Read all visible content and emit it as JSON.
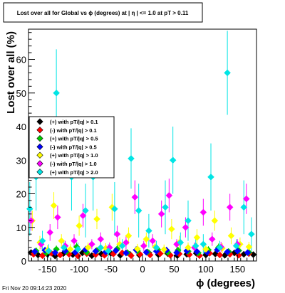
{
  "chart_data": {
    "type": "scatter",
    "title": "Lost over all for Global vs ϕ (degrees) at | η | <= 1.0 at pT > 0.11",
    "xlabel": "ϕ (degrees)",
    "ylabel": "Lost over all (%)",
    "xlim": [
      -180,
      180
    ],
    "ylim": [
      0,
      69
    ],
    "x_ticks": [
      -150,
      -100,
      -50,
      0,
      50,
      100,
      150
    ],
    "y_ticks": [
      0,
      10,
      20,
      30,
      40,
      50,
      60
    ],
    "legend_position": "left-middle",
    "grid": false,
    "footer": "Fri Nov 20 09:14:23 2020",
    "series": [
      {
        "name": "(+) with pT/|q| > 0.1",
        "color": "#000000",
        "x": [
          -176,
          -165,
          -150,
          -138,
          -125,
          -110,
          -95,
          -80,
          -65,
          -50,
          -35,
          -20,
          -5,
          10,
          25,
          40,
          55,
          70,
          85,
          100,
          115,
          130,
          145,
          160,
          175
        ],
        "y": [
          2.5,
          1.8,
          2.0,
          1.5,
          2.2,
          1.9,
          2.4,
          1.6,
          2.1,
          2.3,
          1.7,
          2.0,
          1.8,
          2.4,
          1.9,
          2.2,
          1.6,
          2.0,
          2.3,
          1.8,
          2.1,
          1.7,
          2.4,
          2.0,
          1.9
        ],
        "err": [
          0.8,
          0.7,
          0.8,
          0.6,
          0.8,
          0.7,
          0.8,
          0.6,
          0.8,
          0.8,
          0.7,
          0.8,
          0.7,
          0.8,
          0.7,
          0.8,
          0.6,
          0.8,
          0.8,
          0.7,
          0.8,
          0.7,
          0.8,
          0.8,
          0.7
        ]
      },
      {
        "name": "(-) with pT/|q| > 0.1",
        "color": "#ff0000",
        "x": [
          -172,
          -158,
          -144,
          -130,
          -116,
          -102,
          -88,
          -74,
          -60,
          -46,
          -32,
          -18,
          -4,
          12,
          28,
          44,
          58,
          74,
          90,
          106,
          122,
          138,
          152,
          168
        ],
        "y": [
          2.0,
          1.6,
          2.3,
          1.8,
          2.0,
          1.5,
          2.2,
          1.9,
          1.7,
          2.1,
          2.4,
          1.6,
          2.0,
          1.8,
          2.2,
          1.7,
          2.1,
          1.9,
          1.6,
          2.3,
          1.8,
          2.0,
          1.7,
          2.2
        ],
        "err": [
          0.7,
          0.6,
          0.8,
          0.7,
          0.7,
          0.6,
          0.8,
          0.7,
          0.6,
          0.7,
          0.8,
          0.6,
          0.7,
          0.7,
          0.8,
          0.6,
          0.7,
          0.7,
          0.6,
          0.8,
          0.7,
          0.7,
          0.6,
          0.8
        ]
      },
      {
        "name": "(+) with pT/|q| > 0.5",
        "color": "#00cc00",
        "x": [
          -168,
          -152,
          -136,
          -120,
          -104,
          -88,
          -72,
          -56,
          -40,
          -24,
          -8,
          8,
          24,
          40,
          56,
          72,
          88,
          104,
          120,
          136,
          152,
          168
        ],
        "y": [
          3.0,
          2.4,
          3.5,
          2.8,
          4.2,
          2.6,
          3.1,
          2.9,
          3.6,
          2.5,
          3.0,
          2.7,
          3.4,
          2.6,
          3.2,
          2.9,
          2.4,
          3.3,
          4.0,
          2.8,
          3.1,
          2.6
        ],
        "err": [
          1.0,
          0.9,
          1.1,
          1.0,
          1.3,
          0.9,
          1.0,
          1.0,
          1.1,
          0.9,
          1.0,
          0.9,
          1.1,
          0.9,
          1.0,
          1.0,
          0.9,
          1.1,
          1.2,
          1.0,
          1.0,
          0.9
        ]
      },
      {
        "name": "(-) with pT/|q| > 0.5",
        "color": "#0000ff",
        "x": [
          -170,
          -154,
          -138,
          -122,
          -106,
          -90,
          -74,
          -58,
          -42,
          -26,
          -10,
          6,
          22,
          38,
          54,
          70,
          86,
          102,
          118,
          134,
          150,
          166
        ],
        "y": [
          2.8,
          3.2,
          2.5,
          3.0,
          2.6,
          3.4,
          2.9,
          2.7,
          3.1,
          2.4,
          3.3,
          2.6,
          2.9,
          3.2,
          2.5,
          3.0,
          2.8,
          2.6,
          3.3,
          2.7,
          3.0,
          2.5
        ],
        "err": [
          0.9,
          1.0,
          0.9,
          1.0,
          0.9,
          1.1,
          1.0,
          0.9,
          1.0,
          0.9,
          1.1,
          0.9,
          1.0,
          1.0,
          0.9,
          1.0,
          1.0,
          0.9,
          1.1,
          0.9,
          1.0,
          0.9
        ]
      },
      {
        "name": "(+) with pT/|q| > 1.0",
        "color": "#ffff00",
        "x": [
          -174,
          -162,
          -150,
          -140,
          -128,
          -114,
          -100,
          -86,
          -72,
          -58,
          -48,
          -36,
          -22,
          -8,
          6,
          20,
          34,
          46,
          58,
          72,
          86,
          100,
          114,
          126,
          140,
          154,
          168
        ],
        "y": [
          12.0,
          5.5,
          3.2,
          16.5,
          6.0,
          3.5,
          10.5,
          4.0,
          12.5,
          3.8,
          16.0,
          5.0,
          7.5,
          3.6,
          6.5,
          4.2,
          3.4,
          9.5,
          5.5,
          4.0,
          7.0,
          3.5,
          12.0,
          3.8,
          7.5,
          5.0,
          4.2
        ],
        "err": [
          3.0,
          2.0,
          1.5,
          4.0,
          2.0,
          1.5,
          3.0,
          1.5,
          3.0,
          1.5,
          4.0,
          2.0,
          2.5,
          1.5,
          2.0,
          1.5,
          1.5,
          3.0,
          2.0,
          1.5,
          2.5,
          1.5,
          3.0,
          1.5,
          2.5,
          2.0,
          1.5
        ]
      },
      {
        "name": "(-) with pT/|q| > 1.0",
        "color": "#ff00ff",
        "x": [
          -176,
          -160,
          -146,
          -134,
          -122,
          -108,
          -94,
          -80,
          -66,
          -52,
          -40,
          -26,
          -12,
          2,
          16,
          30,
          42,
          54,
          68,
          82,
          96,
          110,
          124,
          138,
          150,
          164
        ],
        "y": [
          12.0,
          5.0,
          8.5,
          13.0,
          4.5,
          6.0,
          13.5,
          5.0,
          6.5,
          4.0,
          8.0,
          5.5,
          19.0,
          4.5,
          6.0,
          14.0,
          19.5,
          5.0,
          10.0,
          4.0,
          14.5,
          6.5,
          4.2,
          16.0,
          5.0,
          18.5
        ],
        "err": [
          3.0,
          1.5,
          2.5,
          3.5,
          1.5,
          2.0,
          3.5,
          1.5,
          2.0,
          1.5,
          2.5,
          2.0,
          5.0,
          1.5,
          2.0,
          4.0,
          5.0,
          1.5,
          3.0,
          1.5,
          4.0,
          2.0,
          1.5,
          4.0,
          1.5,
          4.5
        ]
      },
      {
        "name": "(+) with pT/|q| > 2.0",
        "color": "#00e5e5",
        "x": [
          -178,
          -168,
          -158,
          -148,
          -136,
          -124,
          -112,
          -102,
          -90,
          -78,
          -66,
          -54,
          -44,
          -32,
          -18,
          -6,
          10,
          22,
          36,
          48,
          60,
          72,
          84,
          96,
          108,
          122,
          134,
          148,
          160,
          172
        ],
        "y": [
          15.5,
          25.0,
          6.0,
          3.0,
          50.0,
          4.0,
          25.0,
          3.5,
          15.0,
          25.0,
          4.0,
          3.0,
          15.5,
          4.5,
          30.5,
          15.0,
          9.0,
          4.0,
          16.0,
          30.0,
          5.5,
          12.0,
          4.5,
          5.0,
          25.0,
          4.0,
          56.0,
          4.5,
          16.0,
          8.0
        ],
        "err": [
          8.0,
          10.0,
          3.0,
          2.0,
          13.0,
          2.0,
          10.0,
          2.0,
          8.0,
          10.0,
          2.0,
          2.0,
          8.0,
          2.0,
          9.0,
          8.0,
          5.0,
          2.0,
          8.0,
          10.0,
          3.0,
          6.0,
          2.0,
          3.0,
          10.0,
          2.0,
          12.5,
          2.0,
          8.0,
          5.0
        ]
      }
    ]
  }
}
